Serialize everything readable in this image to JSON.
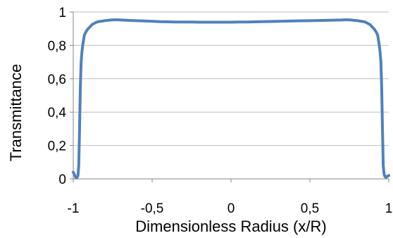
{
  "chart_data": {
    "type": "line",
    "title": "",
    "xlabel": "Dimensionless Radius (x/R)",
    "ylabel": "Transmittance",
    "xlim": [
      -1,
      1
    ],
    "ylim": [
      0,
      1
    ],
    "x_ticks": [
      -1,
      -0.5,
      0,
      0.5,
      1
    ],
    "x_tick_labels": [
      "-1",
      "-0,5",
      "0",
      "0,5",
      "1"
    ],
    "y_ticks": [
      0,
      0.2,
      0.4,
      0.6,
      0.8,
      1
    ],
    "y_tick_labels": [
      "0",
      "0,2",
      "0,4",
      "0,6",
      "0,8",
      "1"
    ],
    "grid": "horizontal",
    "legend": "none",
    "colors": {
      "series": "#4f81bd",
      "grid": "#bfbfbf",
      "axis": "#868686"
    },
    "series": [
      {
        "x": [
          -1.0,
          -0.99,
          -0.985,
          -0.98,
          -0.975,
          -0.97,
          -0.965,
          -0.96,
          -0.955,
          -0.95,
          -0.945,
          -0.94,
          -0.935,
          -0.93,
          -0.925,
          -0.92,
          -0.91,
          -0.9,
          -0.89,
          -0.88,
          -0.87,
          -0.86,
          -0.85,
          -0.84,
          -0.82,
          -0.8,
          -0.78,
          -0.76,
          -0.74,
          -0.72,
          -0.7,
          -0.65,
          -0.6,
          -0.55,
          -0.5,
          -0.45,
          -0.4,
          -0.35,
          -0.3,
          -0.25,
          -0.2,
          -0.15,
          -0.1,
          -0.05,
          0.0,
          0.05,
          0.1,
          0.15,
          0.2,
          0.25,
          0.3,
          0.35,
          0.4,
          0.45,
          0.5,
          0.55,
          0.6,
          0.65,
          0.7,
          0.72,
          0.74,
          0.76,
          0.78,
          0.8,
          0.82,
          0.84,
          0.85,
          0.86,
          0.87,
          0.88,
          0.89,
          0.9,
          0.91,
          0.92,
          0.925,
          0.93,
          0.935,
          0.94,
          0.945,
          0.95,
          0.955,
          0.96,
          0.965,
          0.97,
          0.975,
          0.98,
          0.985,
          0.99,
          1.0
        ],
        "y": [
          0.04,
          0.02,
          0.01,
          0.005,
          0.01,
          0.02,
          0.08,
          0.3,
          0.55,
          0.7,
          0.76,
          0.8,
          0.83,
          0.86,
          0.87,
          0.88,
          0.895,
          0.905,
          0.915,
          0.925,
          0.93,
          0.935,
          0.94,
          0.942,
          0.945,
          0.948,
          0.95,
          0.952,
          0.953,
          0.953,
          0.952,
          0.95,
          0.948,
          0.946,
          0.944,
          0.942,
          0.941,
          0.94,
          0.94,
          0.94,
          0.939,
          0.939,
          0.939,
          0.939,
          0.939,
          0.94,
          0.94,
          0.941,
          0.942,
          0.943,
          0.944,
          0.945,
          0.946,
          0.947,
          0.948,
          0.949,
          0.95,
          0.951,
          0.952,
          0.953,
          0.953,
          0.952,
          0.95,
          0.948,
          0.945,
          0.942,
          0.94,
          0.935,
          0.93,
          0.925,
          0.915,
          0.905,
          0.895,
          0.88,
          0.87,
          0.86,
          0.83,
          0.8,
          0.76,
          0.7,
          0.55,
          0.3,
          0.08,
          0.03,
          0.015,
          0.01,
          0.01,
          0.015,
          0.02
        ]
      }
    ]
  }
}
